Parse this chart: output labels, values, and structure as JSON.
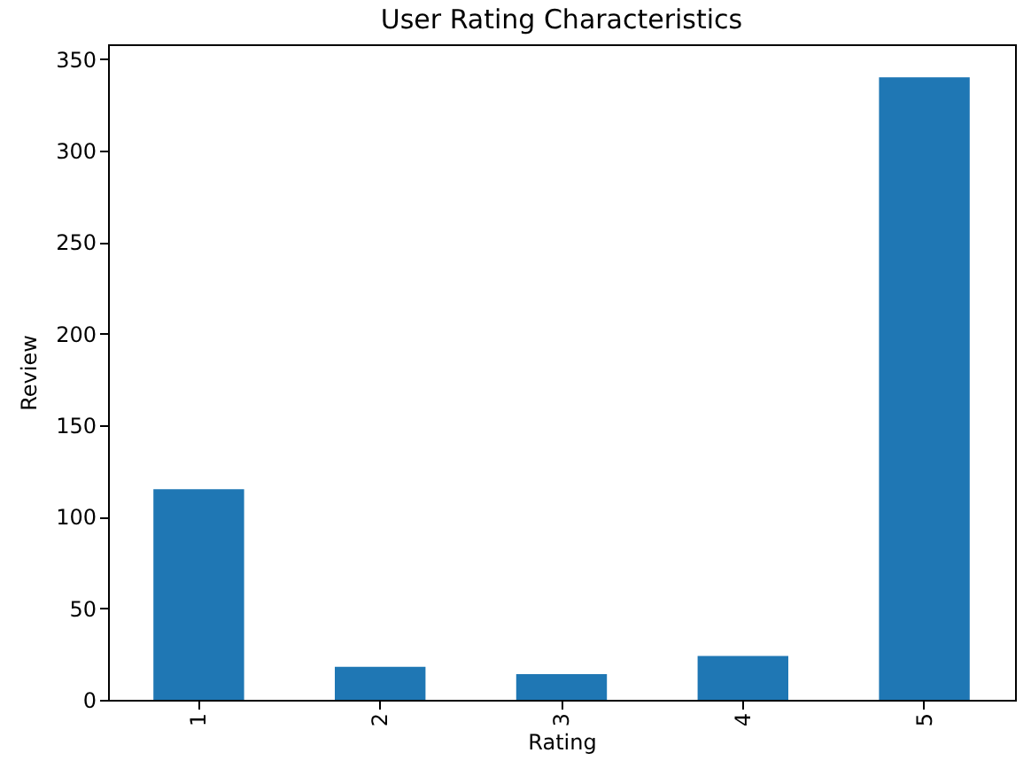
{
  "chart_data": {
    "type": "bar",
    "title": "User Rating Characteristics",
    "xlabel": "Rating",
    "ylabel": "Review",
    "categories": [
      "1",
      "2",
      "3",
      "4",
      "5"
    ],
    "values": [
      115,
      18,
      14,
      24,
      340
    ],
    "color": "#1f77b4",
    "ylim": [
      0,
      358
    ],
    "yticks": [
      0,
      50,
      100,
      150,
      200,
      250,
      300,
      350
    ],
    "grid": false
  }
}
